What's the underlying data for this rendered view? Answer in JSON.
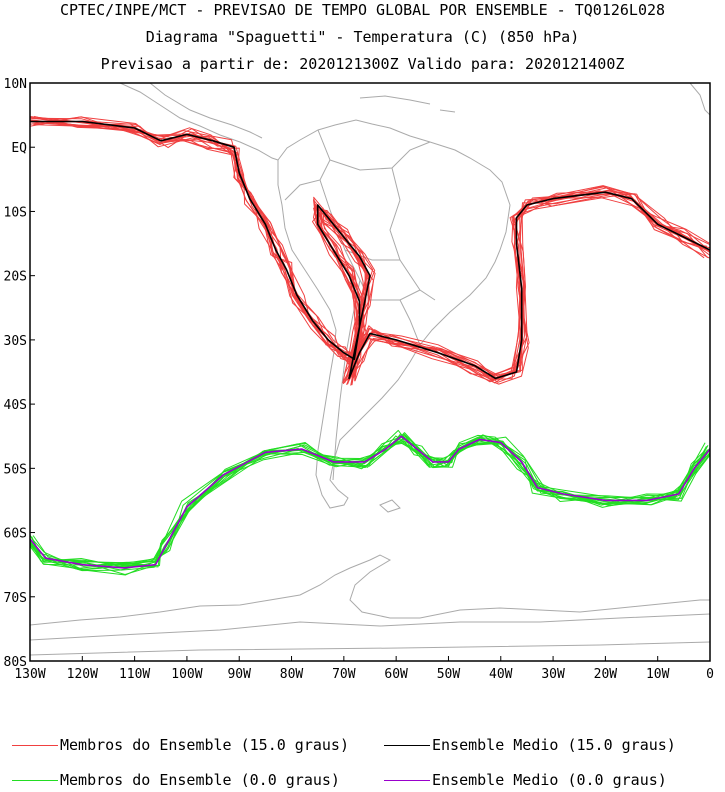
{
  "titles": {
    "line1": "CPTEC/INPE/MCT - PREVISAO DE TEMPO GLOBAL POR ENSEMBLE - TQ0126L028",
    "line2": "Diagrama \"Spaguetti\" - Temperatura (C) (850 hPa)",
    "line3": "Previsao a partir de: 2020121300Z  Valido para: 2020121400Z"
  },
  "axes": {
    "lat_labels": [
      "10N",
      "EQ",
      "10S",
      "20S",
      "30S",
      "40S",
      "50S",
      "60S",
      "70S",
      "80S"
    ],
    "lon_labels": [
      "130W",
      "120W",
      "110W",
      "100W",
      "90W",
      "80W",
      "70W",
      "60W",
      "50W",
      "40W",
      "30W",
      "20W",
      "10W",
      "0"
    ]
  },
  "legend": {
    "members_15_label": "Membros do Ensemble (15.0 graus)",
    "mean_15_label": "Ensemble Medio (15.0 graus)",
    "members_0_label": "Membros do Ensemble (0.0 graus)",
    "mean_0_label": "Ensemble Medio (0.0 graus)"
  },
  "colors": {
    "members_15": "#f04040",
    "mean_15": "#000000",
    "members_0": "#22dd22",
    "mean_0": "#9900cc",
    "coastline": "#aaaaaa"
  },
  "chart_data": {
    "type": "map-contour",
    "projection": "lat-lon",
    "lon_range": [
      -130,
      0
    ],
    "lat_range": [
      -80,
      10
    ],
    "series": [
      {
        "name": "Ensemble Medio (15.0 graus)",
        "lines": [
          [
            [
              -130,
              4
            ],
            [
              -120,
              4
            ],
            [
              -110,
              3
            ],
            [
              -105,
              1
            ],
            [
              -100,
              2
            ],
            [
              -95,
              1
            ],
            [
              -91,
              0
            ],
            [
              -90,
              -4
            ],
            [
              -88,
              -8
            ],
            [
              -85,
              -12
            ],
            [
              -83,
              -16
            ],
            [
              -81,
              -19
            ],
            [
              -79,
              -23
            ],
            [
              -76,
              -27
            ],
            [
              -73,
              -30
            ],
            [
              -70,
              -32
            ],
            [
              -68,
              -33
            ],
            [
              -67,
              -28
            ],
            [
              -66,
              -24
            ],
            [
              -65,
              -20
            ],
            [
              -67,
              -17
            ],
            [
              -70,
              -14
            ],
            [
              -73,
              -11
            ],
            [
              -75,
              -9
            ],
            [
              -75,
              -12
            ],
            [
              -72,
              -16
            ],
            [
              -69,
              -20
            ],
            [
              -67,
              -24
            ],
            [
              -67,
              -28
            ],
            [
              -68,
              -32
            ],
            [
              -69,
              -36
            ],
            [
              -67,
              -32
            ],
            [
              -65,
              -29
            ],
            [
              -60,
              -30
            ],
            [
              -52,
              -32
            ],
            [
              -45,
              -34
            ],
            [
              -41,
              -36
            ],
            [
              -37,
              -35
            ],
            [
              -36,
              -30
            ],
            [
              -36,
              -22
            ],
            [
              -37,
              -15
            ],
            [
              -37,
              -11
            ],
            [
              -35,
              -9
            ],
            [
              -30,
              -8
            ],
            [
              -20,
              -7
            ],
            [
              -15,
              -8
            ],
            [
              -10,
              -12
            ],
            [
              -5,
              -14
            ],
            [
              0,
              -16
            ]
          ]
        ]
      },
      {
        "name": "Ensemble Medio (0.0 graus)",
        "lines": [
          [
            [
              -130,
              -61
            ],
            [
              -127,
              -64
            ],
            [
              -120,
              -65
            ],
            [
              -112,
              -65.5
            ],
            [
              -106,
              -65
            ],
            [
              -104,
              -62
            ],
            [
              -100,
              -56
            ],
            [
              -93,
              -51
            ],
            [
              -85,
              -47.5
            ],
            [
              -78,
              -47
            ],
            [
              -72,
              -49
            ],
            [
              -66,
              -49
            ],
            [
              -62,
              -47
            ],
            [
              -59,
              -45
            ],
            [
              -56,
              -47
            ],
            [
              -53,
              -49
            ],
            [
              -50,
              -49
            ],
            [
              -48,
              -47
            ],
            [
              -44,
              -45.5
            ],
            [
              -40,
              -46
            ],
            [
              -36,
              -49
            ],
            [
              -33,
              -53
            ],
            [
              -28,
              -54
            ],
            [
              -20,
              -55
            ],
            [
              -12,
              -55
            ],
            [
              -6,
              -54
            ],
            [
              -3,
              -50
            ],
            [
              0,
              -47
            ]
          ]
        ]
      }
    ]
  }
}
